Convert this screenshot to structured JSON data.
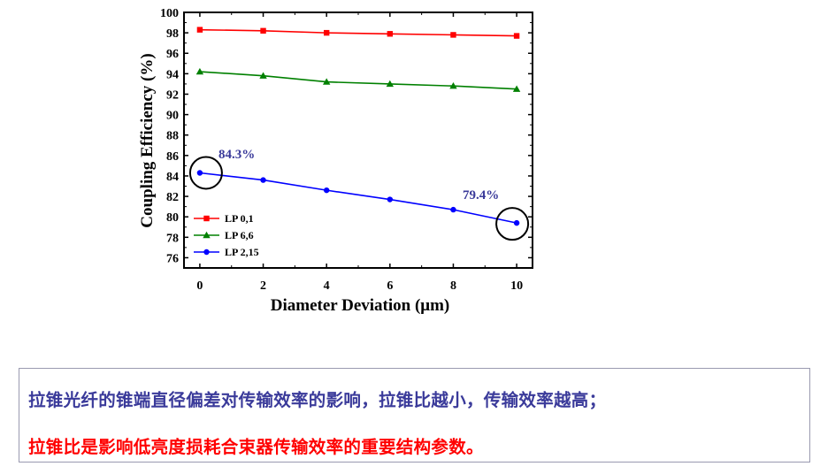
{
  "chart_data": {
    "type": "line",
    "xlabel": "Diameter  Deviation (μm)",
    "ylabel": "Coupling Efficiency (%)",
    "xlim": [
      -0.5,
      10.5
    ],
    "ylim": [
      75,
      100
    ],
    "x_ticks": [
      "0",
      "2",
      "4",
      "6",
      "8",
      "10"
    ],
    "y_ticks": [
      "76",
      "78",
      "80",
      "82",
      "84",
      "86",
      "88",
      "90",
      "92",
      "94",
      "96",
      "98",
      "100"
    ],
    "x": [
      0,
      2,
      4,
      6,
      8,
      10
    ],
    "series": [
      {
        "name": "LP 0,1",
        "color": "#ff0000",
        "marker": "square",
        "values": [
          98.3,
          98.2,
          98.0,
          97.9,
          97.8,
          97.7
        ]
      },
      {
        "name": "LP 6,6",
        "color": "#008000",
        "marker": "triangle",
        "values": [
          94.2,
          93.8,
          93.2,
          93.0,
          92.8,
          92.5
        ]
      },
      {
        "name": "LP 2,15",
        "color": "#0000ff",
        "marker": "circle",
        "values": [
          84.3,
          83.6,
          82.6,
          81.7,
          80.7,
          79.4
        ]
      }
    ],
    "legend_position": "bottom-left",
    "grid": false,
    "annotations": [
      {
        "text": "84.3%",
        "x": 0,
        "y": 84.3,
        "color": "#3a3a9a"
      },
      {
        "text": "79.4%",
        "x": 10,
        "y": 79.4,
        "color": "#3a3a9a"
      }
    ]
  },
  "notes": {
    "line1": "拉锥光纤的锥端直径偏差对传输效率的影响，拉锥比越小，传输效率越高；",
    "line2": "拉锥比是影响低亮度损耗合束器传输效率的重要结构参数。"
  }
}
